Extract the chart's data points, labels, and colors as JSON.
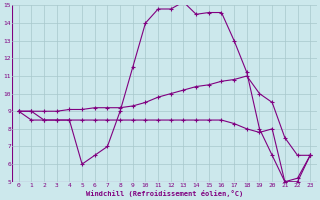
{
  "xlabel": "Windchill (Refroidissement éolien,°C)",
  "bg_color": "#cce8ec",
  "line_color": "#800080",
  "grid_color": "#a8c8cc",
  "xlim": [
    -0.5,
    23.5
  ],
  "ylim": [
    5,
    15
  ],
  "xticks": [
    0,
    1,
    2,
    3,
    4,
    5,
    6,
    7,
    8,
    9,
    10,
    11,
    12,
    13,
    14,
    15,
    16,
    17,
    18,
    19,
    20,
    21,
    22,
    23
  ],
  "yticks": [
    5,
    6,
    7,
    8,
    9,
    10,
    11,
    12,
    13,
    14,
    15
  ],
  "series": [
    {
      "x": [
        0,
        1,
        2,
        3,
        4,
        5,
        6,
        7,
        8,
        9,
        10,
        11,
        12,
        13,
        14,
        15,
        16,
        17,
        18,
        19,
        20,
        21,
        22,
        23
      ],
      "y": [
        9,
        9,
        8.5,
        8.5,
        8.5,
        6.0,
        6.5,
        7.0,
        9.0,
        11.5,
        14.0,
        14.8,
        14.8,
        15.2,
        14.5,
        14.6,
        14.6,
        13.0,
        11.2,
        8.0,
        6.5,
        5.0,
        5.0,
        6.5
      ]
    },
    {
      "x": [
        0,
        1,
        2,
        3,
        4,
        5,
        6,
        7,
        8,
        9,
        10,
        11,
        12,
        13,
        14,
        15,
        16,
        17,
        18,
        19,
        20,
        21,
        22,
        23
      ],
      "y": [
        9,
        9.0,
        9.0,
        9.0,
        9.1,
        9.1,
        9.2,
        9.2,
        9.2,
        9.3,
        9.5,
        9.8,
        10.0,
        10.2,
        10.4,
        10.5,
        10.7,
        10.8,
        11.0,
        10.0,
        9.5,
        7.5,
        6.5,
        6.5
      ]
    },
    {
      "x": [
        0,
        1,
        2,
        3,
        4,
        5,
        6,
        7,
        8,
        9,
        10,
        11,
        12,
        13,
        14,
        15,
        16,
        17,
        18,
        19,
        20,
        21,
        22,
        23
      ],
      "y": [
        9,
        8.5,
        8.5,
        8.5,
        8.5,
        8.5,
        8.5,
        8.5,
        8.5,
        8.5,
        8.5,
        8.5,
        8.5,
        8.5,
        8.5,
        8.5,
        8.5,
        8.3,
        8.0,
        7.8,
        8.0,
        5.0,
        5.2,
        6.5
      ]
    }
  ]
}
